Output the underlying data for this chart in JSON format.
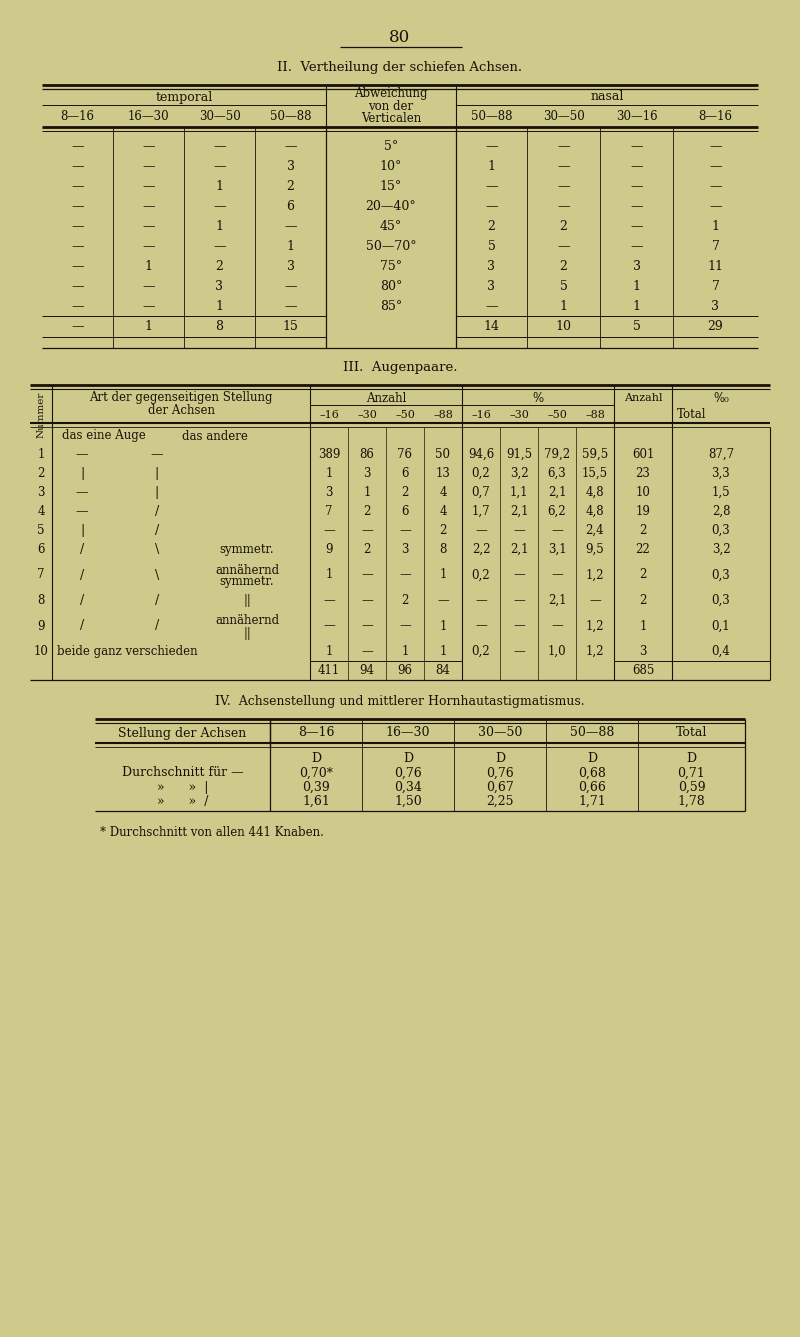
{
  "bg_color": "#ceca8b",
  "text_color": "#1a1008",
  "page_number": "80",
  "title_II": "II.  Vertheilung der schiefen Achsen.",
  "title_III": "III.  Augenpaare.",
  "title_IV": "IV.  Achsenstellung und mittlerer Hornhautastigmatismus.",
  "footnote": "* Durchschnitt von allen 441 Knaben.",
  "t2_rows": [
    [
      "—",
      "—",
      "—",
      "—",
      "5°",
      "—",
      "—",
      "—",
      "—"
    ],
    [
      "—",
      "—",
      "—",
      "3",
      "10°",
      "1",
      "—",
      "—",
      "—"
    ],
    [
      "—",
      "—",
      "1",
      "2",
      "15°",
      "—",
      "—",
      "—",
      "—"
    ],
    [
      "—",
      "—",
      "—",
      "6",
      "20—40°",
      "—",
      "—",
      "—",
      "—"
    ],
    [
      "—",
      "—",
      "1",
      "—",
      "45°",
      "2",
      "2",
      "—",
      "1"
    ],
    [
      "—",
      "—",
      "—",
      "1",
      "50—70°",
      "5",
      "—",
      "—",
      "7"
    ],
    [
      "—",
      "1",
      "2",
      "3",
      "75°",
      "3",
      "2",
      "3",
      "11"
    ],
    [
      "—",
      "—",
      "3",
      "—",
      "80°",
      "3",
      "5",
      "1",
      "7"
    ],
    [
      "—",
      "—",
      "1",
      "—",
      "85°",
      "—",
      "1",
      "1",
      "3"
    ],
    [
      "—",
      "1",
      "8",
      "15",
      "",
      "14",
      "10",
      "5",
      "29"
    ]
  ],
  "t3_rows": [
    [
      "",
      "das eine Auge",
      "das andere",
      "",
      "",
      "",
      "",
      "",
      "",
      "",
      "",
      "",
      "",
      ""
    ],
    [
      "1",
      "—",
      "—",
      "",
      "389",
      "86",
      "76",
      "50",
      "94,6",
      "91,5",
      "79,2",
      "59,5",
      "601",
      "87,7"
    ],
    [
      "2",
      "|",
      "|",
      "",
      "1",
      "3",
      "6",
      "13",
      "0,2",
      "3,2",
      "6,3",
      "15,5",
      "23",
      "3,3"
    ],
    [
      "3",
      "—",
      "|",
      "",
      "3",
      "1",
      "2",
      "4",
      "0,7",
      "1,1",
      "2,1",
      "4,8",
      "10",
      "1,5"
    ],
    [
      "4",
      "—",
      "/",
      "",
      "7",
      "2",
      "6",
      "4",
      "1,7",
      "2,1",
      "6,2",
      "4,8",
      "19",
      "2,8"
    ],
    [
      "5",
      "|",
      "/",
      "",
      "—",
      "—",
      "—",
      "2",
      "—",
      "—",
      "—",
      "2,4",
      "2",
      "0,3"
    ],
    [
      "6",
      "/",
      "\\",
      "symmetr.",
      "9",
      "2",
      "3",
      "8",
      "2,2",
      "2,1",
      "3,1",
      "9,5",
      "22",
      "3,2"
    ],
    [
      "7",
      "/",
      "\\",
      "annähernd symmetr.",
      "1",
      "—",
      "—",
      "1",
      "0,2",
      "—",
      "—",
      "1,2",
      "2",
      "0,3"
    ],
    [
      "8",
      "/",
      "/",
      "||",
      "—",
      "—",
      "2",
      "—",
      "—",
      "—",
      "2,1",
      "—",
      "2",
      "0,3"
    ],
    [
      "9",
      "/",
      "/",
      "annähernd ||",
      "—",
      "—",
      "—",
      "1",
      "—",
      "—",
      "—",
      "1,2",
      "1",
      "0,1"
    ],
    [
      "10",
      "beide ganz verschieden",
      "",
      "",
      "1",
      "—",
      "1",
      "1",
      "0,2",
      "—",
      "1,0",
      "1,2",
      "3",
      "0,4"
    ],
    [
      "",
      "",
      "",
      "",
      "411",
      "94",
      "96",
      "84",
      "",
      "",
      "",
      "",
      "685",
      ""
    ]
  ],
  "t4_rows": [
    [
      "Durchschnitt für —",
      "0,70*",
      "0,76",
      "0,76",
      "0,68",
      "0,71"
    ],
    [
      "»      »  |",
      "0,39",
      "0,34",
      "0,67",
      "0,66",
      "0,59"
    ],
    [
      "»      »  /",
      "1,61",
      "1,50",
      "2,25",
      "1,71",
      "1,78"
    ]
  ]
}
